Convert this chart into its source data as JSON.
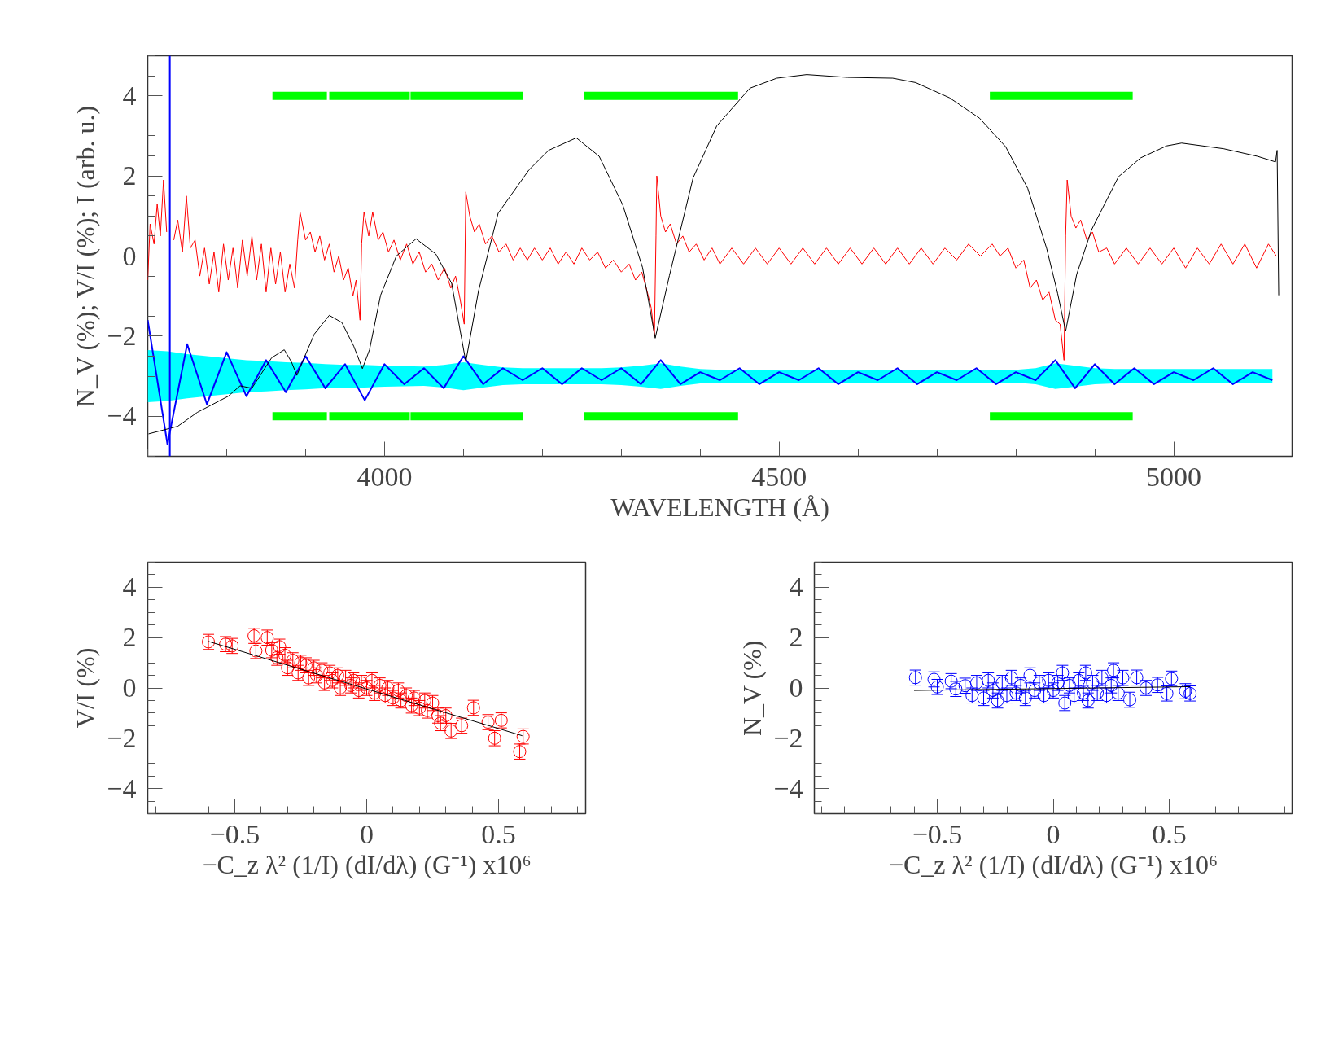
{
  "chart_data": [
    {
      "type": "line",
      "xlabel": "WAVELENGTH (Å)",
      "ylabel": "N_V (%); V/I (%); I (arb. u.)",
      "xlim": [
        3700,
        5150
      ],
      "ylim": [
        -5,
        5
      ],
      "xticks": [
        4000,
        4500,
        5000
      ],
      "yticks": [
        -4,
        -2,
        0,
        2,
        4
      ],
      "ref_lines": [
        {
          "axis": "y",
          "value": 0,
          "color": "#ff0000"
        },
        {
          "axis": "x",
          "value": 3728,
          "color": "#0000ff"
        }
      ],
      "series": [
        {
          "color": "#000000",
          "x": [
            3701,
            3738,
            3763,
            3802,
            3817,
            3832,
            3857,
            3873,
            3882,
            3889,
            3896,
            3911,
            3930,
            3946,
            3961,
            3972,
            3981,
            3995,
            4015,
            4040,
            4065,
            4085,
            4103,
            4119,
            4144,
            4183,
            4208,
            4243,
            4272,
            4302,
            4327,
            4343,
            4361,
            4391,
            4421,
            4463,
            4497,
            4535,
            4587,
            4644,
            4673,
            4716,
            4754,
            4787,
            4815,
            4839,
            4853,
            4863,
            4877,
            4896,
            4930,
            4958,
            4991,
            5010,
            5063,
            5106,
            5129,
            5131,
            5133
          ],
          "values": [
            -4.44,
            -4.25,
            -3.9,
            -3.5,
            -3.24,
            -3.3,
            -2.54,
            -2.34,
            -2.64,
            -2.98,
            -2.64,
            -1.95,
            -1.48,
            -1.66,
            -2.25,
            -2.81,
            -2.34,
            -0.98,
            0,
            0.43,
            0.05,
            -0.68,
            -2.64,
            -0.88,
            1.07,
            2.15,
            2.64,
            2.95,
            2.49,
            1.27,
            -0.29,
            -2.05,
            -0.49,
            1.95,
            3.25,
            4.19,
            4.44,
            4.53,
            4.46,
            4.44,
            4.33,
            3.95,
            3.44,
            2.73,
            1.69,
            0.19,
            -0.94,
            -1.88,
            -0.46,
            0.66,
            1.98,
            2.45,
            2.75,
            2.82,
            2.68,
            2.49,
            2.35,
            2.64,
            -0.98
          ]
        },
        {
          "color": "#ff0000",
          "x": [
            3700,
            3703,
            3708,
            3712,
            3716,
            3720,
            3724,
            3728,
            3733,
            3738,
            3744,
            3749,
            3754,
            3760,
            3766,
            3772,
            3778,
            3784,
            3790,
            3796,
            3802,
            3808,
            3814,
            3820,
            3826,
            3832,
            3838,
            3844,
            3850,
            3856,
            3862,
            3868,
            3874,
            3880,
            3886,
            3890,
            3893,
            3900,
            3906,
            3912,
            3918,
            3924,
            3930,
            3936,
            3942,
            3948,
            3954,
            3960,
            3964,
            3969,
            3971,
            3974,
            3980,
            3985,
            3992,
            3998,
            4005,
            4012,
            4020,
            4028,
            4036,
            4044,
            4052,
            4060,
            4068,
            4076,
            4084,
            4090,
            4096,
            4101,
            4103,
            4108,
            4114,
            4120,
            4128,
            4136,
            4145,
            4154,
            4163,
            4172,
            4181,
            4190,
            4200,
            4210,
            4220,
            4230,
            4240,
            4250,
            4260,
            4270,
            4280,
            4290,
            4300,
            4310,
            4318,
            4326,
            4333,
            4338,
            4342,
            4344,
            4345,
            4350,
            4356,
            4362,
            4370,
            4378,
            4386,
            4395,
            4405,
            4415,
            4425,
            4440,
            4455,
            4470,
            4485,
            4500,
            4515,
            4530,
            4545,
            4560,
            4575,
            4590,
            4605,
            4620,
            4635,
            4650,
            4665,
            4680,
            4695,
            4710,
            4725,
            4740,
            4755,
            4770,
            4780,
            4790,
            4800,
            4810,
            4818,
            4826,
            4834,
            4842,
            4850,
            4856,
            4861,
            4863,
            4865,
            4870,
            4876,
            4882,
            4890,
            4897,
            4905,
            4915,
            4925,
            4940,
            4955,
            4970,
            4985,
            5000,
            5015,
            5030,
            5045,
            5060,
            5075,
            5090,
            5105,
            5120,
            5130
          ],
          "values": [
            -0.6,
            0.8,
            0.3,
            1.3,
            0.5,
            1.9,
            0.6,
            null,
            0.4,
            0.9,
            0.1,
            1.5,
            0.2,
            0.4,
            -0.5,
            0.2,
            -0.7,
            0.1,
            -0.9,
            0.3,
            -0.6,
            0.2,
            -0.8,
            0.4,
            -0.5,
            0.5,
            -0.6,
            0.3,
            -0.9,
            0.2,
            -0.7,
            0.1,
            -0.9,
            -0.2,
            -0.8,
            0.4,
            1.1,
            0.4,
            0.6,
            0.1,
            0.5,
            -0.1,
            0.3,
            -0.4,
            0.0,
            -0.6,
            -0.3,
            -1.0,
            -0.6,
            -1.6,
            0.3,
            1.1,
            0.5,
            1.1,
            0.4,
            0.6,
            0.1,
            0.4,
            -0.1,
            0.3,
            -0.2,
            0.1,
            -0.4,
            -0.2,
            -0.6,
            -0.3,
            -0.8,
            -0.5,
            -1.1,
            -1.7,
            1.6,
            1.0,
            0.6,
            0.8,
            0.3,
            0.5,
            0.1,
            0.3,
            -0.1,
            0.2,
            -0.1,
            0.2,
            -0.1,
            0.2,
            -0.2,
            0.1,
            -0.2,
            0.2,
            -0.1,
            0.1,
            -0.3,
            -0.1,
            -0.4,
            -0.2,
            -0.6,
            -0.4,
            -0.9,
            -1.3,
            -2.0,
            0.5,
            2.0,
            1.0,
            0.6,
            0.8,
            0.3,
            0.5,
            0.1,
            0.3,
            -0.1,
            0.2,
            -0.2,
            0.2,
            -0.2,
            0.2,
            -0.2,
            0.2,
            -0.2,
            0.2,
            -0.2,
            0.2,
            -0.2,
            0.2,
            -0.2,
            0.2,
            -0.2,
            0.2,
            -0.2,
            0.2,
            -0.2,
            0.2,
            -0.1,
            0.3,
            0.0,
            0.3,
            0.0,
            0.2,
            -0.3,
            -0.1,
            -0.8,
            -0.6,
            -1.1,
            -0.9,
            -1.6,
            -1.7,
            -2.6,
            0.5,
            1.9,
            1.0,
            0.7,
            0.9,
            0.4,
            0.6,
            0.1,
            0.2,
            -0.2,
            0.2,
            -0.2,
            0.2,
            -0.2,
            0.2,
            -0.3,
            0.2,
            -0.2,
            0.3,
            -0.2,
            0.3,
            -0.3,
            0.3,
            0.0
          ]
        },
        {
          "color": "#0000ff",
          "x": [
            3700,
            3725,
            3750,
            3775,
            3800,
            3825,
            3850,
            3875,
            3900,
            3925,
            3950,
            3975,
            4000,
            4025,
            4050,
            4075,
            4100,
            4125,
            4150,
            4175,
            4200,
            4225,
            4250,
            4275,
            4300,
            4325,
            4350,
            4375,
            4400,
            4425,
            4450,
            4475,
            4500,
            4525,
            4550,
            4575,
            4600,
            4625,
            4650,
            4675,
            4700,
            4725,
            4750,
            4775,
            4800,
            4825,
            4850,
            4875,
            4900,
            4925,
            4950,
            4975,
            5000,
            5025,
            5050,
            5075,
            5100,
            5125
          ],
          "values": [
            -1.6,
            -4.7,
            -2.2,
            -3.7,
            -2.4,
            -3.5,
            -2.6,
            -3.4,
            -2.5,
            -3.3,
            -2.7,
            -3.6,
            -2.7,
            -3.2,
            -2.8,
            -3.3,
            -2.5,
            -3.2,
            -2.8,
            -3.1,
            -2.8,
            -3.2,
            -2.8,
            -3.1,
            -2.8,
            -3.2,
            -2.6,
            -3.2,
            -2.9,
            -3.1,
            -2.8,
            -3.2,
            -2.9,
            -3.1,
            -2.8,
            -3.2,
            -2.9,
            -3.1,
            -2.8,
            -3.2,
            -2.9,
            -3.1,
            -2.8,
            -3.2,
            -2.9,
            -3.1,
            -2.6,
            -3.3,
            -2.7,
            -3.2,
            -2.8,
            -3.2,
            -2.9,
            -3.1,
            -2.8,
            -3.2,
            -2.9,
            -3.1
          ],
          "upper": [
            -2.35,
            -2.38,
            -2.45,
            -2.5,
            -2.55,
            -2.6,
            -2.62,
            -2.65,
            -2.67,
            -2.7,
            -2.72,
            -2.72,
            -2.74,
            -2.75,
            -2.76,
            -2.72,
            -2.65,
            -2.72,
            -2.78,
            -2.8,
            -2.8,
            -2.8,
            -2.8,
            -2.8,
            -2.78,
            -2.74,
            -2.68,
            -2.76,
            -2.82,
            -2.84,
            -2.84,
            -2.84,
            -2.84,
            -2.84,
            -2.84,
            -2.84,
            -2.84,
            -2.84,
            -2.84,
            -2.84,
            -2.84,
            -2.84,
            -2.84,
            -2.84,
            -2.84,
            -2.8,
            -2.68,
            -2.74,
            -2.8,
            -2.82,
            -2.82,
            -2.82,
            -2.82,
            -2.82,
            -2.82,
            -2.82,
            -2.82,
            -2.82
          ],
          "lower": [
            -3.65,
            -3.62,
            -3.55,
            -3.5,
            -3.45,
            -3.4,
            -3.38,
            -3.35,
            -3.33,
            -3.3,
            -3.28,
            -3.28,
            -3.26,
            -3.25,
            -3.24,
            -3.28,
            -3.35,
            -3.28,
            -3.22,
            -3.2,
            -3.2,
            -3.2,
            -3.2,
            -3.2,
            -3.22,
            -3.26,
            -3.32,
            -3.24,
            -3.18,
            -3.16,
            -3.16,
            -3.16,
            -3.16,
            -3.16,
            -3.16,
            -3.16,
            -3.16,
            -3.16,
            -3.16,
            -3.16,
            -3.16,
            -3.16,
            -3.16,
            -3.16,
            -3.16,
            -3.2,
            -3.32,
            -3.26,
            -3.2,
            -3.18,
            -3.18,
            -3.18,
            -3.18,
            -3.18,
            -3.18,
            -3.18,
            -3.18,
            -3.18
          ]
        },
        {
          "color": "#00ff00",
          "x": [
            3858,
            3927,
            3928,
            3930,
            4032,
            4032.5,
            4033,
            4175,
            4200,
            4253,
            4448,
            4600,
            4767,
            4948
          ],
          "values": [
            4,
            4,
            null,
            4,
            4,
            null,
            4,
            4,
            null,
            4,
            4,
            null,
            4,
            4
          ]
        },
        {
          "color": "#00ff00",
          "x": [
            3858,
            3927,
            3928,
            3930,
            4032,
            4032.5,
            4033,
            4175,
            4200,
            4253,
            4448,
            4600,
            4767,
            4948
          ],
          "values": [
            -4,
            -4,
            null,
            -4,
            -4,
            null,
            -4,
            -4,
            null,
            -4,
            -4,
            null,
            -4,
            -4
          ]
        }
      ]
    },
    {
      "type": "scatter",
      "xlabel": "−C_z λ² (1/I) (dI/dλ) (G⁻¹) x10⁶",
      "ylabel": "V/I (%)",
      "xlim": [
        -0.83,
        0.83
      ],
      "ylim": [
        -5,
        5
      ],
      "xticks": [
        -0.5,
        0,
        0.5
      ],
      "yticks": [
        -4,
        -2,
        0,
        2,
        4
      ],
      "series": [
        {
          "marker": "circle",
          "color": "#ff0000",
          "x": [
            -0.6,
            -0.535,
            -0.51,
            -0.427,
            -0.42,
            -0.377,
            -0.36,
            -0.33,
            -0.34,
            -0.31,
            -0.3,
            -0.28,
            -0.26,
            -0.25,
            -0.23,
            -0.22,
            -0.2,
            -0.19,
            -0.17,
            -0.16,
            -0.14,
            -0.13,
            -0.11,
            -0.1,
            -0.08,
            -0.06,
            -0.05,
            -0.03,
            -0.02,
            0.0,
            0.02,
            0.03,
            0.05,
            0.07,
            0.08,
            0.1,
            0.12,
            0.13,
            0.15,
            0.17,
            0.18,
            0.2,
            0.22,
            0.23,
            0.25,
            0.27,
            0.28,
            0.3,
            0.32,
            0.36,
            0.405,
            0.46,
            0.485,
            0.51,
            0.58,
            0.593
          ],
          "values": [
            1.83,
            1.74,
            1.67,
            2.07,
            1.47,
            2.0,
            1.5,
            1.64,
            1.2,
            1.3,
            0.8,
            1.1,
            0.6,
            1.0,
            0.9,
            0.4,
            0.8,
            0.5,
            0.7,
            0.2,
            0.6,
            0.3,
            0.5,
            0.0,
            0.4,
            0.1,
            0.3,
            -0.1,
            0.2,
            0.0,
            0.3,
            -0.2,
            0.1,
            -0.3,
            0.0,
            -0.4,
            -0.1,
            -0.5,
            -0.3,
            -0.7,
            -0.4,
            -0.8,
            -0.5,
            -0.9,
            -0.6,
            -1.1,
            -1.4,
            -1.1,
            -1.71,
            -1.5,
            -0.79,
            -1.36,
            -2.0,
            -1.29,
            -2.53,
            -1.93
          ],
          "errors": [
            0.3,
            0.3,
            0.3,
            0.3,
            0.3,
            0.3,
            0.3,
            0.3,
            0.3,
            0.3,
            0.3,
            0.3,
            0.3,
            0.3,
            0.3,
            0.3,
            0.3,
            0.3,
            0.3,
            0.3,
            0.3,
            0.3,
            0.3,
            0.3,
            0.3,
            0.3,
            0.3,
            0.3,
            0.3,
            0.3,
            0.3,
            0.3,
            0.3,
            0.3,
            0.3,
            0.3,
            0.3,
            0.3,
            0.3,
            0.3,
            0.3,
            0.3,
            0.3,
            0.3,
            0.3,
            0.3,
            0.3,
            0.3,
            0.3,
            0.3,
            0.3,
            0.3,
            0.3,
            0.3,
            0.3,
            0.3
          ]
        },
        {
          "type": "line",
          "color": "#000000",
          "x": [
            -0.6,
            0.59
          ],
          "values": [
            1.85,
            -1.9
          ]
        }
      ]
    },
    {
      "type": "scatter",
      "xlabel": "−C_z λ² (1/I) (dI/dλ) (G⁻¹) x10⁶",
      "ylabel": "N_V (%)",
      "xlim": [
        -1.03,
        1.03
      ],
      "ylim": [
        -5,
        5
      ],
      "xticks": [
        -0.5,
        0,
        0.5
      ],
      "yticks": [
        -4,
        -2,
        0,
        2,
        4
      ],
      "series": [
        {
          "marker": "circle",
          "color": "#0000ff",
          "x": [
            -0.594,
            -0.514,
            -0.5,
            -0.44,
            -0.42,
            -0.38,
            -0.35,
            -0.33,
            -0.3,
            -0.28,
            -0.26,
            -0.24,
            -0.22,
            -0.2,
            -0.18,
            -0.16,
            -0.14,
            -0.12,
            -0.1,
            -0.08,
            -0.06,
            -0.04,
            -0.02,
            0.0,
            0.02,
            0.04,
            0.05,
            0.07,
            0.09,
            0.11,
            0.13,
            0.14,
            0.15,
            0.17,
            0.19,
            0.21,
            0.23,
            0.25,
            0.26,
            0.28,
            0.3,
            0.33,
            0.36,
            0.4,
            0.45,
            0.49,
            0.51,
            0.57,
            0.59
          ],
          "values": [
            0.41,
            0.34,
            0.04,
            0.27,
            -0.04,
            0.09,
            -0.3,
            0.2,
            -0.4,
            0.3,
            -0.1,
            -0.5,
            0.2,
            -0.3,
            0.4,
            -0.2,
            0.1,
            -0.4,
            0.5,
            -0.1,
            0.2,
            -0.3,
            0.3,
            -0.1,
            0.2,
            0.6,
            -0.6,
            0.1,
            -0.3,
            0.3,
            -0.2,
            0.6,
            -0.5,
            0.2,
            -0.2,
            0.4,
            -0.3,
            0.1,
            0.7,
            -0.2,
            0.4,
            -0.47,
            0.41,
            0.0,
            0.12,
            -0.22,
            0.37,
            -0.13,
            -0.22
          ],
          "errors": [
            0.3,
            0.3,
            0.3,
            0.3,
            0.3,
            0.3,
            0.3,
            0.3,
            0.3,
            0.3,
            0.3,
            0.3,
            0.3,
            0.3,
            0.3,
            0.3,
            0.3,
            0.3,
            0.3,
            0.3,
            0.3,
            0.3,
            0.3,
            0.3,
            0.3,
            0.3,
            0.3,
            0.3,
            0.3,
            0.3,
            0.3,
            0.3,
            0.3,
            0.3,
            0.3,
            0.3,
            0.3,
            0.3,
            0.3,
            0.3,
            0.3,
            0.3,
            0.3,
            0.3,
            0.3,
            0.3,
            0.3,
            0.3,
            0.3
          ]
        },
        {
          "type": "line",
          "color": "#000000",
          "x": [
            -0.6,
            0.59
          ],
          "values": [
            -0.1,
            0.05
          ]
        }
      ]
    }
  ]
}
